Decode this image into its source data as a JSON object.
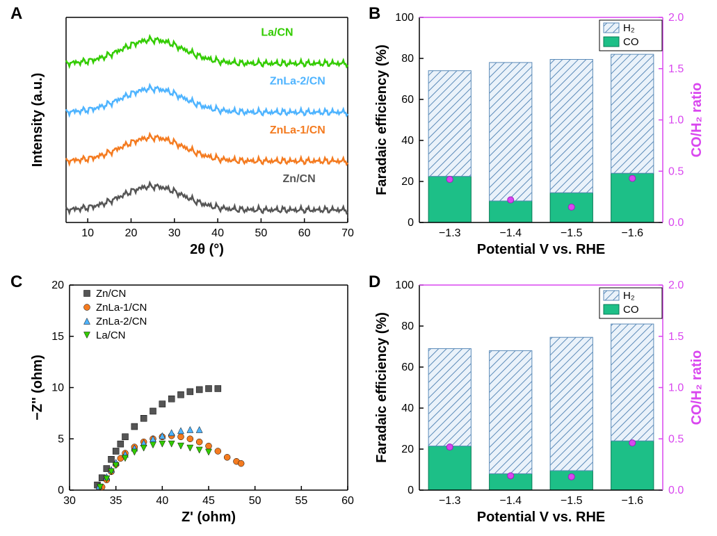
{
  "panels": {
    "A": "A",
    "B": "B",
    "C": "C",
    "D": "D"
  },
  "A": {
    "type": "line",
    "xlabel": "2θ (°)",
    "ylabel": "Intensity (a.u.)",
    "xlim": [
      5,
      70
    ],
    "xticks": [
      10,
      20,
      30,
      40,
      50,
      60,
      70
    ],
    "background": "#ffffff",
    "axis_color": "#000000",
    "label_fontsize": 20,
    "tick_fontsize": 16,
    "series": [
      {
        "name": "La/CN",
        "color": "#33cc00",
        "offset": 3,
        "label_x": 50
      },
      {
        "name": "ZnLa-2/CN",
        "color": "#4fb4ff",
        "offset": 2,
        "label_x": 52
      },
      {
        "name": "ZnLa-1/CN",
        "color": "#f47b20",
        "offset": 1,
        "label_x": 52
      },
      {
        "name": "Zn/CN",
        "color": "#555555",
        "offset": 0,
        "label_x": 55
      }
    ],
    "peak_x": 25
  },
  "B": {
    "type": "bar-dual-axis",
    "xlabel": "Potential V vs. RHE",
    "ylabel": "Faradaic efficiency (%)",
    "y2label": "CO/H₂ ratio",
    "categories": [
      "−1.3",
      "−1.4",
      "−1.5",
      "−1.6"
    ],
    "ylim": [
      0,
      100
    ],
    "yticks": [
      0,
      20,
      40,
      60,
      80,
      100
    ],
    "y2lim": [
      0,
      2.0
    ],
    "y2ticks": [
      "0.0",
      "0.5",
      "1.0",
      "1.5",
      "2.0"
    ],
    "co_color": "#1dbf87",
    "h2_fill": "#eaf2fa",
    "h2_hatch": "#5a8ab8",
    "ratio_color": "#d946ef",
    "bars": [
      {
        "co": 22.5,
        "h2": 51.5
      },
      {
        "co": 10.5,
        "h2": 67.5
      },
      {
        "co": 14.5,
        "h2": 65.0
      },
      {
        "co": 24.0,
        "h2": 58.0
      }
    ],
    "ratio": [
      0.42,
      0.22,
      0.15,
      0.43
    ],
    "legend": [
      "H₂",
      "CO"
    ]
  },
  "C": {
    "type": "scatter",
    "xlabel": "Z' (ohm)",
    "ylabel": "−Z'' (ohm)",
    "xlim": [
      30,
      60
    ],
    "xticks": [
      30,
      35,
      40,
      45,
      50,
      55,
      60
    ],
    "ylim": [
      0,
      20
    ],
    "yticks": [
      0,
      5,
      10,
      15,
      20
    ],
    "series": [
      {
        "name": "Zn/CN",
        "color": "#555555",
        "marker": "square",
        "pts": [
          [
            33,
            0.5
          ],
          [
            33.5,
            1.2
          ],
          [
            34,
            2.1
          ],
          [
            34.5,
            3.0
          ],
          [
            35,
            3.8
          ],
          [
            35.5,
            4.5
          ],
          [
            36,
            5.2
          ],
          [
            37,
            6.2
          ],
          [
            38,
            7.0
          ],
          [
            39,
            7.7
          ],
          [
            40,
            8.4
          ],
          [
            41,
            8.9
          ],
          [
            42,
            9.3
          ],
          [
            43,
            9.6
          ],
          [
            44,
            9.8
          ],
          [
            45,
            9.9
          ],
          [
            46,
            9.9
          ]
        ]
      },
      {
        "name": "ZnLa-1/CN",
        "color": "#f47b20",
        "marker": "circle",
        "pts": [
          [
            33.5,
            0.3
          ],
          [
            34,
            1.0
          ],
          [
            34.5,
            1.8
          ],
          [
            35,
            2.5
          ],
          [
            35.5,
            3.1
          ],
          [
            36,
            3.6
          ],
          [
            37,
            4.2
          ],
          [
            38,
            4.7
          ],
          [
            39,
            5.0
          ],
          [
            40,
            5.2
          ],
          [
            41,
            5.3
          ],
          [
            42,
            5.2
          ],
          [
            43,
            5.0
          ],
          [
            44,
            4.7
          ],
          [
            45,
            4.3
          ],
          [
            46,
            3.8
          ],
          [
            47,
            3.2
          ],
          [
            48,
            2.8
          ],
          [
            48.5,
            2.6
          ]
        ]
      },
      {
        "name": "ZnLa-2/CN",
        "color": "#4fb4ff",
        "marker": "tri-up",
        "pts": [
          [
            33.2,
            0.4
          ],
          [
            34,
            1.3
          ],
          [
            34.5,
            2.0
          ],
          [
            35,
            2.7
          ],
          [
            36,
            3.5
          ],
          [
            37,
            4.1
          ],
          [
            38,
            4.6
          ],
          [
            39,
            5.0
          ],
          [
            40,
            5.3
          ],
          [
            41,
            5.6
          ],
          [
            42,
            5.8
          ],
          [
            43,
            5.9
          ],
          [
            44,
            5.9
          ]
        ]
      },
      {
        "name": "La/CN",
        "color": "#33cc00",
        "marker": "tri-down",
        "pts": [
          [
            33.3,
            0.3
          ],
          [
            34,
            1.1
          ],
          [
            34.5,
            1.8
          ],
          [
            35,
            2.4
          ],
          [
            36,
            3.1
          ],
          [
            37,
            3.7
          ],
          [
            38,
            4.1
          ],
          [
            39,
            4.4
          ],
          [
            40,
            4.5
          ],
          [
            41,
            4.5
          ],
          [
            42,
            4.3
          ],
          [
            43,
            4.1
          ],
          [
            44,
            3.9
          ],
          [
            45,
            3.7
          ]
        ]
      }
    ]
  },
  "D": {
    "type": "bar-dual-axis",
    "xlabel": "Potential V vs. RHE",
    "ylabel": "Faradaic efficiency (%)",
    "y2label": "CO/H₂ ratio",
    "categories": [
      "−1.3",
      "−1.4",
      "−1.5",
      "−1.6"
    ],
    "ylim": [
      0,
      100
    ],
    "yticks": [
      0,
      20,
      40,
      60,
      80,
      100
    ],
    "y2lim": [
      0,
      2.0
    ],
    "y2ticks": [
      "0.0",
      "0.5",
      "1.0",
      "1.5",
      "2.0"
    ],
    "co_color": "#1dbf87",
    "h2_fill": "#eaf2fa",
    "h2_hatch": "#5a8ab8",
    "ratio_color": "#d946ef",
    "bars": [
      {
        "co": 21.5,
        "h2": 47.5
      },
      {
        "co": 8.0,
        "h2": 60.0
      },
      {
        "co": 9.5,
        "h2": 65.0
      },
      {
        "co": 24.0,
        "h2": 57.0
      }
    ],
    "ratio": [
      0.42,
      0.14,
      0.13,
      0.46
    ],
    "legend": [
      "H₂",
      "CO"
    ]
  }
}
